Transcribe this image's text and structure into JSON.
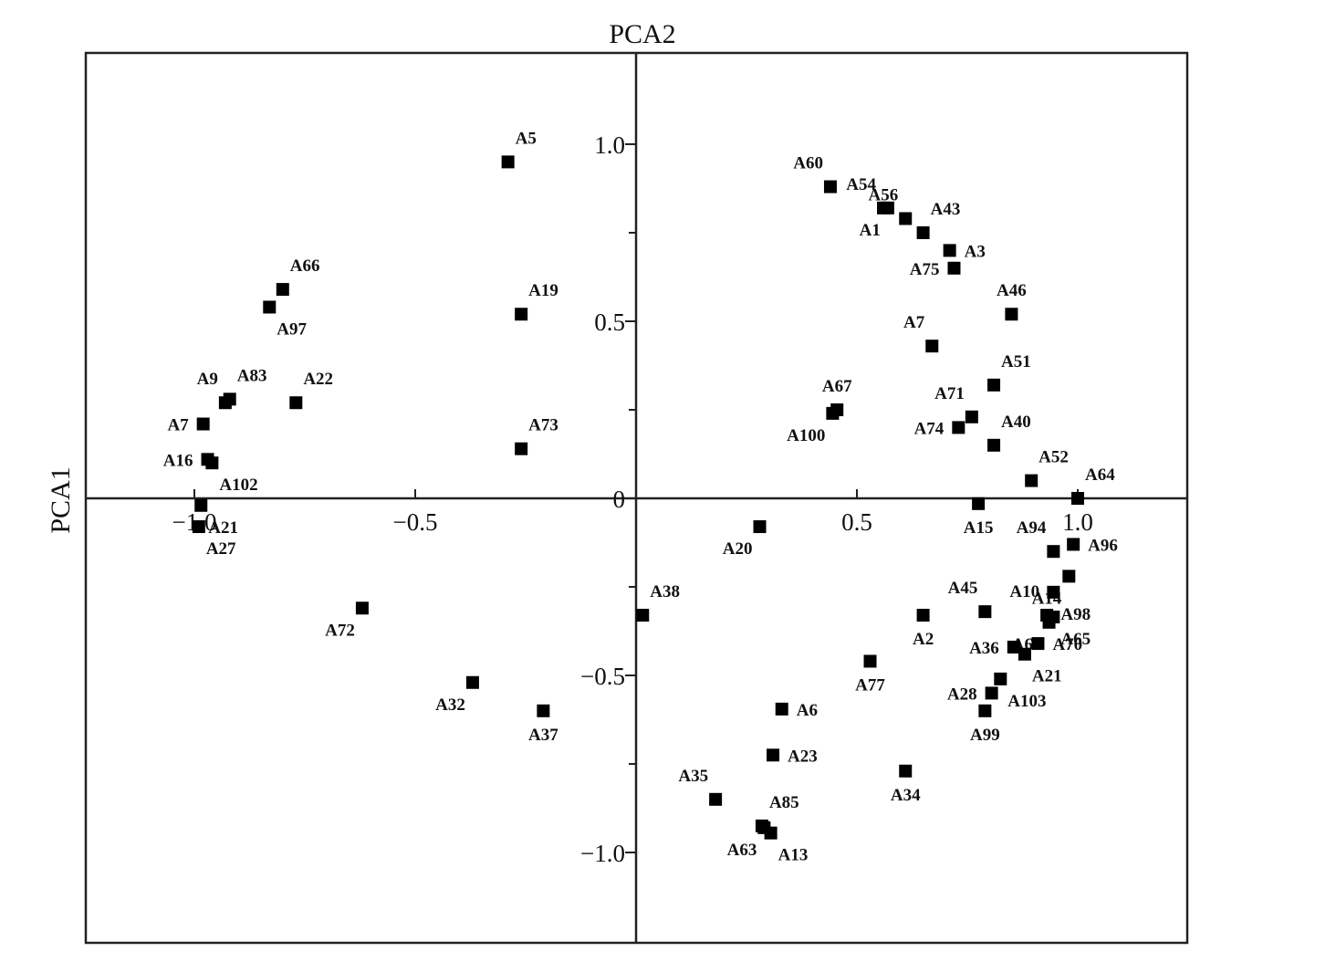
{
  "chart_data": {
    "type": "scatter",
    "xlabel": "PCA2",
    "ylabel": "PCA1",
    "xlim": [
      -1.25,
      1.25
    ],
    "ylim": [
      -1.25,
      1.25
    ],
    "x_ticks": [
      {
        "value": -1.0,
        "label": "−1.0"
      },
      {
        "value": -0.5,
        "label": "−0.5"
      },
      {
        "value": 0.5,
        "label": "0.5"
      },
      {
        "value": 1.0,
        "label": "1.0"
      }
    ],
    "y_ticks": [
      {
        "value": 1.0,
        "label": "1.0"
      },
      {
        "value": 0.5,
        "label": "0.5"
      },
      {
        "value": 0,
        "label": "0"
      },
      {
        "value": -0.5,
        "label": "−0.5"
      },
      {
        "value": -1.0,
        "label": "−1.0"
      }
    ],
    "grid": false,
    "legend": "none",
    "marker": "square",
    "marker_color": "#000000",
    "points": [
      {
        "label": "A5",
        "x": -0.29,
        "y": 0.95,
        "lpos": "tr"
      },
      {
        "label": "A19",
        "x": -0.26,
        "y": 0.52,
        "lpos": "tr"
      },
      {
        "label": "A73",
        "x": -0.26,
        "y": 0.14,
        "lpos": "tr"
      },
      {
        "label": "A66",
        "x": -0.8,
        "y": 0.59,
        "lpos": "tr"
      },
      {
        "label": "A97",
        "x": -0.83,
        "y": 0.54,
        "lpos": "br"
      },
      {
        "label": "A83",
        "x": -0.92,
        "y": 0.28,
        "lpos": "tr"
      },
      {
        "label": "A9",
        "x": -0.93,
        "y": 0.27,
        "lpos": "tl"
      },
      {
        "label": "A22",
        "x": -0.77,
        "y": 0.27,
        "lpos": "tr"
      },
      {
        "label": "A7",
        "x": -0.98,
        "y": 0.21,
        "lpos": "l"
      },
      {
        "label": "A16",
        "x": -0.97,
        "y": 0.11,
        "lpos": "l"
      },
      {
        "label": "A102",
        "x": -0.96,
        "y": 0.1,
        "lpos": "br"
      },
      {
        "label": "A21",
        "x": -0.985,
        "y": -0.02,
        "lpos": "br"
      },
      {
        "label": "A27",
        "x": -0.99,
        "y": -0.08,
        "lpos": "br"
      },
      {
        "label": "A72",
        "x": -0.62,
        "y": -0.31,
        "lpos": "bl"
      },
      {
        "label": "A32",
        "x": -0.37,
        "y": -0.52,
        "lpos": "bl"
      },
      {
        "label": "A37",
        "x": -0.21,
        "y": -0.6,
        "lpos": "b"
      },
      {
        "label": "A38",
        "x": 0.015,
        "y": -0.33,
        "lpos": "tr"
      },
      {
        "label": "A20",
        "x": 0.28,
        "y": -0.08,
        "lpos": "bl"
      },
      {
        "label": "A60",
        "x": 0.44,
        "y": 0.88,
        "lpos": "tl"
      },
      {
        "label": "A54",
        "x": 0.56,
        "y": 0.82,
        "lpos": "tl"
      },
      {
        "label": "A1",
        "x": 0.57,
        "y": 0.82,
        "lpos": "bl"
      },
      {
        "label": "A56",
        "x": 0.61,
        "y": 0.79,
        "lpos": "tl"
      },
      {
        "label": "A43",
        "x": 0.65,
        "y": 0.75,
        "lpos": "tr"
      },
      {
        "label": "A3",
        "x": 0.71,
        "y": 0.7,
        "lpos": "r"
      },
      {
        "label": "A75",
        "x": 0.72,
        "y": 0.65,
        "lpos": "l"
      },
      {
        "label": "A46",
        "x": 0.85,
        "y": 0.52,
        "lpos": "t"
      },
      {
        "label": "A7",
        "x": 0.67,
        "y": 0.43,
        "lpos": "tl"
      },
      {
        "label": "A51",
        "x": 0.81,
        "y": 0.32,
        "lpos": "tr"
      },
      {
        "label": "A67",
        "x": 0.455,
        "y": 0.25,
        "lpos": "t"
      },
      {
        "label": "A100",
        "x": 0.445,
        "y": 0.24,
        "lpos": "bl"
      },
      {
        "label": "A71",
        "x": 0.76,
        "y": 0.23,
        "lpos": "tl"
      },
      {
        "label": "A74",
        "x": 0.73,
        "y": 0.2,
        "lpos": "l"
      },
      {
        "label": "A40",
        "x": 0.81,
        "y": 0.15,
        "lpos": "tr"
      },
      {
        "label": "A52",
        "x": 0.895,
        "y": 0.05,
        "lpos": "tr"
      },
      {
        "label": "A64",
        "x": 1.0,
        "y": 0.0,
        "lpos": "tr"
      },
      {
        "label": "A15",
        "x": 0.775,
        "y": -0.015,
        "lpos": "b"
      },
      {
        "label": "A94",
        "x": 0.945,
        "y": -0.15,
        "lpos": "tl"
      },
      {
        "label": "A96",
        "x": 0.99,
        "y": -0.13,
        "lpos": "r"
      },
      {
        "label": "A14",
        "x": 0.98,
        "y": -0.22,
        "lpos": "bl"
      },
      {
        "label": "A98",
        "x": 0.945,
        "y": -0.265,
        "lpos": "br"
      },
      {
        "label": "A45",
        "x": 0.79,
        "y": -0.32,
        "lpos": "tl"
      },
      {
        "label": "A10",
        "x": 0.93,
        "y": -0.33,
        "lpos": "tl"
      },
      {
        "label": "A65",
        "x": 0.945,
        "y": -0.335,
        "lpos": "br"
      },
      {
        "label": "A2",
        "x": 0.65,
        "y": -0.33,
        "lpos": "b"
      },
      {
        "label": "A68",
        "x": 0.935,
        "y": -0.35,
        "lpos": "bl"
      },
      {
        "label": "A70",
        "x": 0.91,
        "y": -0.41,
        "lpos": "r"
      },
      {
        "label": "A36",
        "x": 0.855,
        "y": -0.42,
        "lpos": "l"
      },
      {
        "label": "A21",
        "x": 0.88,
        "y": -0.44,
        "lpos": "br"
      },
      {
        "label": "A77",
        "x": 0.53,
        "y": -0.46,
        "lpos": "b"
      },
      {
        "label": "A103",
        "x": 0.825,
        "y": -0.51,
        "lpos": "br"
      },
      {
        "label": "A28",
        "x": 0.805,
        "y": -0.55,
        "lpos": "l"
      },
      {
        "label": "A99",
        "x": 0.79,
        "y": -0.6,
        "lpos": "b"
      },
      {
        "label": "A6",
        "x": 0.33,
        "y": -0.595,
        "lpos": "r"
      },
      {
        "label": "A23",
        "x": 0.31,
        "y": -0.725,
        "lpos": "r"
      },
      {
        "label": "A34",
        "x": 0.61,
        "y": -0.77,
        "lpos": "b"
      },
      {
        "label": "A35",
        "x": 0.18,
        "y": -0.85,
        "lpos": "tl"
      },
      {
        "label": "A85",
        "x": 0.285,
        "y": -0.925,
        "lpos": "tr"
      },
      {
        "label": "A63",
        "x": 0.29,
        "y": -0.93,
        "lpos": "bl"
      },
      {
        "label": "A13",
        "x": 0.305,
        "y": -0.945,
        "lpos": "br"
      }
    ]
  }
}
